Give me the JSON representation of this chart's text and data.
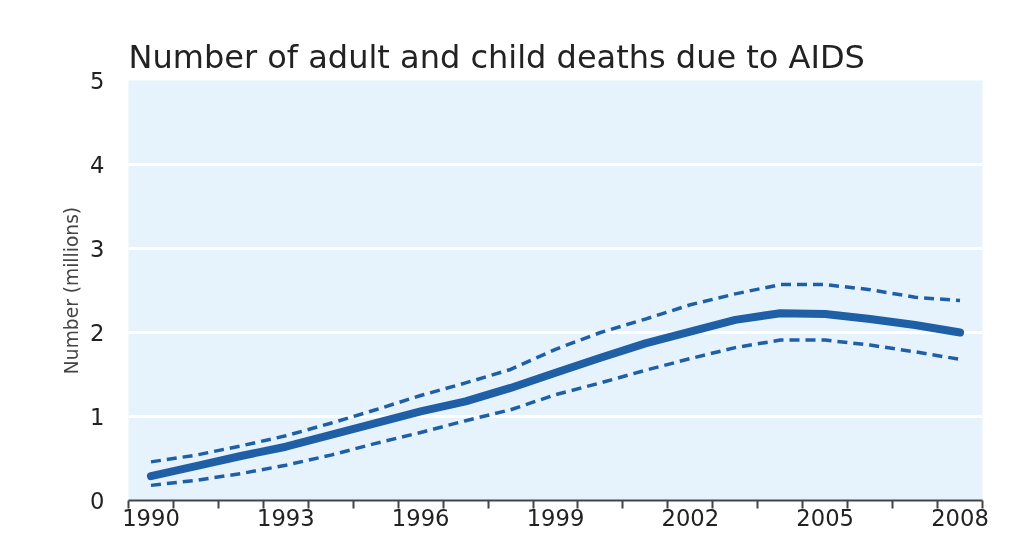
{
  "chart_data": {
    "type": "line",
    "title": "Number of adult and child deaths due to AIDS",
    "ylabel": "Number (millions)",
    "x": [
      1990,
      1991,
      1992,
      1993,
      1994,
      1995,
      1996,
      1997,
      1998,
      1999,
      2000,
      2001,
      2002,
      2003,
      2004,
      2005,
      2006,
      2007,
      2008
    ],
    "series": [
      {
        "color": "#1f5fa6",
        "line_style": "dashed",
        "values": [
          0.46,
          0.54,
          0.65,
          0.77,
          0.92,
          1.08,
          1.25,
          1.4,
          1.56,
          1.8,
          2.0,
          2.16,
          2.33,
          2.46,
          2.57,
          2.57,
          2.51,
          2.42,
          2.38
        ]
      },
      {
        "color": "#1f5fa6",
        "line_style": "solid",
        "values": [
          0.29,
          0.41,
          0.53,
          0.64,
          0.78,
          0.92,
          1.06,
          1.18,
          1.34,
          1.52,
          1.7,
          1.87,
          2.01,
          2.15,
          2.23,
          2.22,
          2.16,
          2.09,
          2.0
        ]
      },
      {
        "color": "#1f5fa6",
        "line_style": "dashed",
        "values": [
          0.18,
          0.24,
          0.32,
          0.42,
          0.54,
          0.68,
          0.81,
          0.95,
          1.08,
          1.26,
          1.4,
          1.55,
          1.69,
          1.82,
          1.91,
          1.91,
          1.85,
          1.77,
          1.68
        ]
      }
    ],
    "xlim": [
      1989.5,
      2008.5
    ],
    "xticks": [
      1990,
      1993,
      1996,
      1999,
      2002,
      2005,
      2008,
      {
        "value": 1989.5,
        "label": null
      },
      {
        "value": 1990.5,
        "label": null
      },
      {
        "value": 1991.5,
        "label": null
      },
      {
        "value": 1992.5,
        "label": null
      },
      {
        "value": 1993.5,
        "label": null
      },
      {
        "value": 1994.5,
        "label": null
      },
      {
        "value": 1995.5,
        "label": null
      },
      {
        "value": 1996.5,
        "label": null
      },
      {
        "value": 1997.5,
        "label": null
      },
      {
        "value": 1998.5,
        "label": null
      },
      {
        "value": 1999.5,
        "label": null
      },
      {
        "value": 2000.5,
        "label": null
      },
      {
        "value": 2001.5,
        "label": null
      },
      {
        "value": 2002.5,
        "label": null
      },
      {
        "value": 2003.5,
        "label": null
      },
      {
        "value": 2004.5,
        "label": null
      },
      {
        "value": 2005.5,
        "label": null
      },
      {
        "value": 2006.5,
        "label": null
      },
      {
        "value": 2007.5,
        "label": null
      },
      {
        "value": 2008.5,
        "label": null
      }
    ],
    "ylim": [
      0,
      5
    ],
    "yticks": [
      0,
      1,
      2,
      3,
      4,
      5
    ],
    "grid": "y"
  }
}
